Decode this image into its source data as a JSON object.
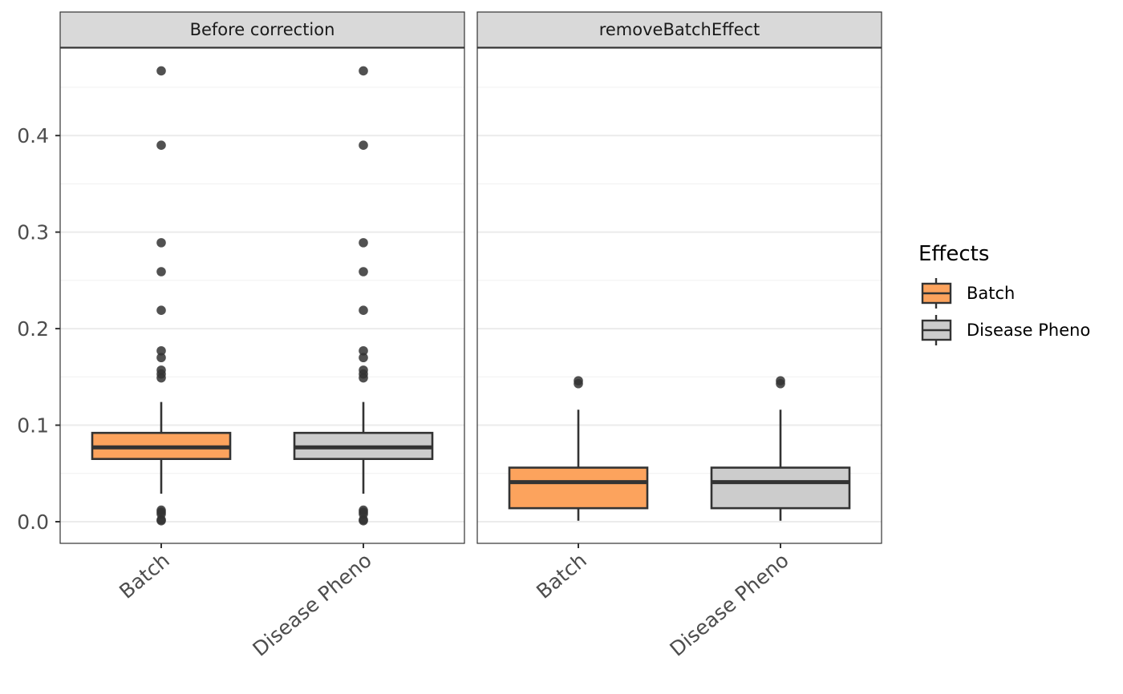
{
  "chart_data": {
    "type": "boxplot",
    "facets": [
      "Before correction",
      "removeBatchEffect"
    ],
    "categories": [
      "Batch",
      "Disease Pheno"
    ],
    "ylim": [
      -0.022,
      0.49
    ],
    "yticks": [
      0.0,
      0.1,
      0.2,
      0.3,
      0.4
    ],
    "ytick_labels": [
      "0.0",
      "0.1",
      "0.2",
      "0.3",
      "0.4"
    ],
    "grid": true,
    "legend": {
      "title": "Effects",
      "position": "right",
      "entries": [
        {
          "label": "Batch",
          "color": "#FCA35D"
        },
        {
          "label": "Disease Pheno",
          "color": "#CCCCCC"
        }
      ]
    },
    "boxes": [
      {
        "facet": "Before correction",
        "category": "Batch",
        "fill": "#FCA35D",
        "whisker_low": 0.029,
        "q1": 0.065,
        "median": 0.077,
        "q3": 0.092,
        "whisker_high": 0.124,
        "outliers": [
          0.467,
          0.39,
          0.289,
          0.259,
          0.219,
          0.177,
          0.17,
          0.157,
          0.153,
          0.149,
          0.012,
          0.01,
          0.008,
          0.002,
          0.001
        ]
      },
      {
        "facet": "Before correction",
        "category": "Disease Pheno",
        "fill": "#CCCCCC",
        "whisker_low": 0.029,
        "q1": 0.065,
        "median": 0.077,
        "q3": 0.092,
        "whisker_high": 0.124,
        "outliers": [
          0.467,
          0.39,
          0.289,
          0.259,
          0.219,
          0.177,
          0.17,
          0.157,
          0.153,
          0.149,
          0.012,
          0.01,
          0.008,
          0.002,
          0.001
        ]
      },
      {
        "facet": "removeBatchEffect",
        "category": "Batch",
        "fill": "#FCA35D",
        "whisker_low": 0.001,
        "q1": 0.014,
        "median": 0.041,
        "q3": 0.056,
        "whisker_high": 0.116,
        "outliers": [
          0.146,
          0.143
        ]
      },
      {
        "facet": "removeBatchEffect",
        "category": "Disease Pheno",
        "fill": "#CCCCCC",
        "whisker_low": 0.001,
        "q1": 0.014,
        "median": 0.041,
        "q3": 0.056,
        "whisker_high": 0.116,
        "outliers": [
          0.146,
          0.143
        ]
      }
    ]
  }
}
